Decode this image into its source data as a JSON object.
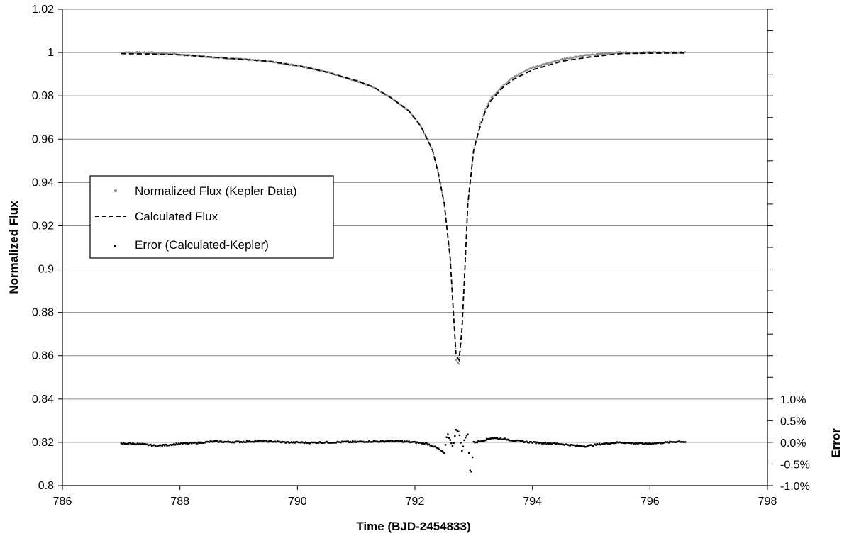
{
  "chart_data": {
    "type": "scatter",
    "title": "",
    "xlabel": "Time (BJD-2454833)",
    "ylabel": "Normalized Flux",
    "y2label": "Error",
    "xlim": [
      786,
      798
    ],
    "ylim": [
      0.8,
      1.02
    ],
    "y2lim": [
      -0.01,
      0.01
    ],
    "x_ticks": [
      "786",
      "788",
      "790",
      "792",
      "794",
      "796",
      "798"
    ],
    "y_ticks": [
      "0.8",
      "0.82",
      "0.84",
      "0.86",
      "0.88",
      "0.9",
      "0.92",
      "0.94",
      "0.96",
      "0.98",
      "1",
      "1.02"
    ],
    "y2_ticks": [
      "-1.0%",
      "-0.5%",
      "0.0%",
      "0.5%",
      "1.0%"
    ],
    "grid": "horizontal",
    "legend_position": "left-middle",
    "legend": [
      "Normalized Flux (Kepler Data)",
      "Calculated Flux",
      "Error (Calculated-Kepler)"
    ],
    "series": [
      {
        "name": "Normalized Flux (Kepler Data)",
        "style": "points",
        "color": "#8c8c8c",
        "x": [
          787.0,
          787.5,
          788.0,
          788.5,
          789.0,
          789.5,
          790.0,
          790.5,
          791.0,
          791.3,
          791.6,
          791.9,
          792.1,
          792.3,
          792.4,
          792.5,
          792.6,
          792.65,
          792.7,
          792.75,
          792.8,
          792.85,
          792.9,
          793.0,
          793.1,
          793.2,
          793.3,
          793.5,
          793.7,
          794.0,
          794.5,
          795.0,
          795.5,
          796.0,
          796.6
        ],
        "y": [
          1.0,
          1.0,
          0.999,
          0.998,
          0.997,
          0.996,
          0.994,
          0.991,
          0.987,
          0.984,
          0.979,
          0.973,
          0.966,
          0.955,
          0.944,
          0.93,
          0.905,
          0.882,
          0.858,
          0.856,
          0.87,
          0.9,
          0.93,
          0.955,
          0.966,
          0.974,
          0.979,
          0.985,
          0.989,
          0.993,
          0.997,
          0.999,
          1.0,
          1.0,
          1.0
        ]
      },
      {
        "name": "Calculated Flux",
        "style": "dashed-line",
        "color": "#000000",
        "x": [
          787.0,
          787.5,
          788.0,
          788.5,
          789.0,
          789.5,
          790.0,
          790.5,
          791.0,
          791.3,
          791.6,
          791.9,
          792.1,
          792.3,
          792.4,
          792.5,
          792.6,
          792.65,
          792.7,
          792.75,
          792.8,
          792.85,
          792.9,
          793.0,
          793.1,
          793.2,
          793.3,
          793.5,
          793.7,
          794.0,
          794.5,
          795.0,
          795.5,
          796.0,
          796.6
        ],
        "y": [
          0.9995,
          0.9993,
          0.999,
          0.998,
          0.997,
          0.996,
          0.994,
          0.991,
          0.987,
          0.984,
          0.979,
          0.973,
          0.966,
          0.955,
          0.944,
          0.93,
          0.905,
          0.882,
          0.86,
          0.858,
          0.872,
          0.9,
          0.93,
          0.955,
          0.965,
          0.973,
          0.978,
          0.984,
          0.988,
          0.992,
          0.996,
          0.998,
          0.9995,
          0.9997,
          0.9998
        ]
      },
      {
        "name": "Error (Calculated-Kepler)",
        "style": "points",
        "color": "#000000",
        "axis": "secondary",
        "x": [
          787.0,
          787.2,
          787.4,
          787.6,
          787.8,
          788.0,
          788.2,
          788.4,
          788.6,
          788.8,
          789.0,
          789.2,
          789.4,
          789.6,
          789.8,
          790.0,
          790.2,
          790.4,
          790.6,
          790.8,
          791.0,
          791.2,
          791.4,
          791.6,
          791.8,
          792.0,
          792.2,
          792.3,
          792.4,
          792.5,
          792.55,
          792.6,
          792.65,
          792.7,
          792.75,
          792.8,
          792.85,
          792.9,
          792.95,
          793.0,
          793.1,
          793.2,
          793.3,
          793.5,
          793.7,
          793.9,
          794.1,
          794.3,
          794.5,
          794.7,
          794.9,
          795.1,
          795.3,
          795.5,
          795.7,
          795.9,
          796.1,
          796.3,
          796.5,
          796.6
        ],
        "y": [
          -0.0003,
          -0.0003,
          -0.0005,
          -0.0008,
          -0.0006,
          -0.0003,
          -0.0002,
          0.0,
          0.0002,
          0.0001,
          0.0001,
          0.0002,
          0.0003,
          0.0002,
          0.0,
          0.0,
          -0.0001,
          0.0,
          0.0,
          0.0001,
          0.0001,
          0.0002,
          0.0002,
          0.0003,
          0.0002,
          0.0,
          -0.0003,
          -0.0008,
          -0.0015,
          -0.0025,
          0.002,
          0.0005,
          -0.001,
          0.003,
          0.0025,
          -0.002,
          0.001,
          0.0018,
          -0.0085,
          0.0,
          0.0002,
          0.0006,
          0.001,
          0.0008,
          0.0004,
          0.0001,
          -0.0001,
          -0.0002,
          -0.0004,
          -0.0007,
          -0.0009,
          -0.0005,
          -0.0002,
          0.0,
          -0.0002,
          -0.0003,
          -0.0002,
          0.0,
          0.0002,
          0.0001
        ]
      }
    ]
  }
}
